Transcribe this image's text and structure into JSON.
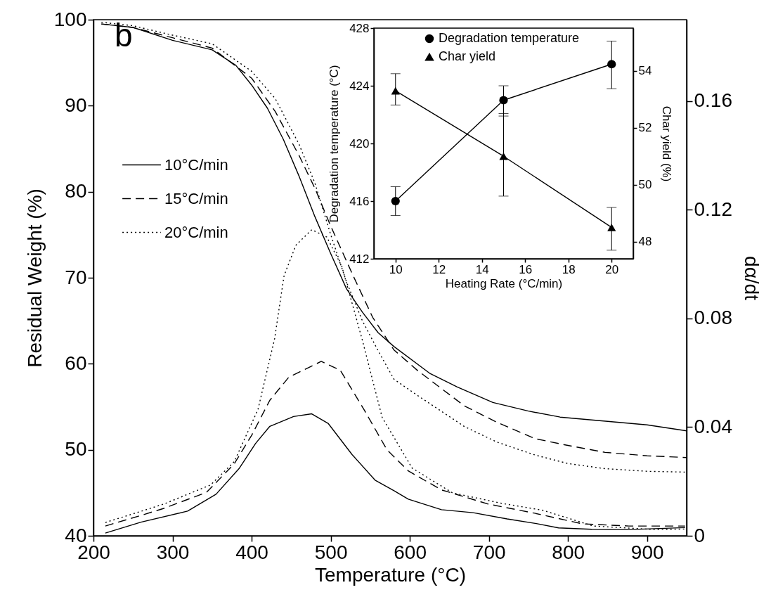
{
  "chart_data": [
    {
      "type": "line",
      "xlabel": "Temperature (°C)",
      "ylabel": "Residual Weight (%)",
      "y2label": "dα/dt",
      "annotations": [
        "b"
      ],
      "legend": "top left",
      "xlim": [
        200,
        950
      ],
      "xticks": [
        200,
        300,
        400,
        500,
        600,
        700,
        800,
        900
      ],
      "ylim": [
        40,
        100
      ],
      "yticks": [
        40,
        50,
        60,
        70,
        80,
        90,
        100
      ],
      "y2lim": [
        0,
        0.19
      ],
      "y2ticks": [
        0,
        0.04,
        0.08,
        0.12,
        0.16
      ],
      "series": [
        {
          "name": "10°C/min",
          "color": "#000000",
          "line_style": "solid",
          "x": [
            210,
            250,
            300,
            350,
            380,
            400,
            420,
            440,
            460,
            480,
            500,
            520,
            540,
            560,
            580,
            625,
            660,
            705,
            750,
            790,
            850,
            900,
            950
          ],
          "values": [
            99.5,
            99.1,
            97.6,
            96.5,
            94.7,
            92.4,
            89.7,
            86.1,
            81.8,
            77.1,
            72.8,
            68.7,
            66.0,
            63.6,
            62.0,
            58.9,
            57.3,
            55.5,
            54.5,
            53.8,
            53.3,
            52.9,
            52.2
          ]
        },
        {
          "name": "15°C/min",
          "color": "#000000",
          "line_style": "dashed",
          "x": [
            210,
            250,
            300,
            350,
            400,
            430,
            460,
            480,
            500,
            527,
            553,
            580,
            610,
            669,
            710,
            758,
            800,
            847,
            900,
            950
          ],
          "values": [
            99.5,
            99.1,
            97.9,
            96.7,
            93.2,
            89.3,
            84.2,
            80.4,
            76.0,
            70.5,
            65.4,
            61.6,
            59.2,
            55.1,
            53.2,
            51.3,
            50.5,
            49.7,
            49.3,
            49.1
          ]
        },
        {
          "name": "20°C/min",
          "color": "#000000",
          "line_style": "dotted",
          "x": [
            210,
            250,
            300,
            350,
            400,
            430,
            460,
            480,
            500,
            520,
            540,
            560,
            580,
            610,
            669,
            710,
            758,
            800,
            847,
            900,
            950
          ],
          "values": [
            99.7,
            99.3,
            98.2,
            97.2,
            94.0,
            90.8,
            85.5,
            81.0,
            75.0,
            69.5,
            65.0,
            61.5,
            58.2,
            56.3,
            52.7,
            50.9,
            49.4,
            48.4,
            47.8,
            47.5,
            47.4
          ]
        },
        {
          "color": "#000000",
          "line_style": "solid",
          "axis": "y2",
          "x": [
            215,
            260,
            319,
            355,
            384,
            405,
            423,
            453,
            476,
            497,
            527,
            556,
            580,
            598,
            640,
            680,
            723,
            760,
            788,
            830,
            877,
            948
          ],
          "values": [
            0.001,
            0.005,
            0.0091,
            0.0153,
            0.0247,
            0.034,
            0.0403,
            0.0439,
            0.0449,
            0.0413,
            0.0299,
            0.0205,
            0.0166,
            0.0135,
            0.0096,
            0.0085,
            0.0062,
            0.0045,
            0.0029,
            0.0024,
            0.0023,
            0.003
          ]
        },
        {
          "color": "#000000",
          "line_style": "dashed",
          "axis": "y2",
          "x": [
            215,
            260,
            289,
            343,
            378,
            400,
            423,
            447,
            488,
            512,
            542,
            571,
            598,
            640,
            699,
            758,
            818,
            877,
            948
          ],
          "values": [
            0.0036,
            0.0075,
            0.0101,
            0.016,
            0.0265,
            0.037,
            0.0499,
            0.0584,
            0.0642,
            0.061,
            0.0465,
            0.0317,
            0.0239,
            0.0169,
            0.0117,
            0.0083,
            0.0044,
            0.0036,
            0.0036
          ]
        },
        {
          "color": "#000000",
          "line_style": "dotted",
          "axis": "y2",
          "x": [
            215,
            260,
            289,
            348,
            378,
            408,
            429,
            441,
            456,
            476,
            495,
            514,
            540,
            565,
            603,
            654,
            717,
            768,
            832,
            909,
            948
          ],
          "values": [
            0.0049,
            0.009,
            0.0117,
            0.0187,
            0.0273,
            0.0465,
            0.0725,
            0.0958,
            0.107,
            0.1127,
            0.11,
            0.0992,
            0.072,
            0.0436,
            0.0249,
            0.0158,
            0.0119,
            0.0094,
            0.0036,
            0.0023,
            0.0025
          ]
        }
      ]
    },
    {
      "type": "line",
      "xlabel": "Heating Rate (°C/min)",
      "ylabel": "Degradation temperature (°C)",
      "y2label": "Char yield (%)",
      "legend": "top",
      "x": [
        10,
        15,
        20
      ],
      "xlim": [
        9,
        21
      ],
      "xticks": [
        10,
        12,
        14,
        16,
        18,
        20
      ],
      "ylim": [
        412,
        428
      ],
      "yticks": [
        412,
        416,
        420,
        424,
        428
      ],
      "y2lim": [
        47.4,
        55.5
      ],
      "y2ticks": [
        48,
        50,
        52,
        54
      ],
      "series": [
        {
          "name": "Degradation temperature",
          "color": "#000000",
          "line_style": "solid",
          "marker": "circle",
          "values": [
            416.0,
            423.0,
            425.5
          ],
          "errors": [
            1,
            [
              421.9,
              424.0
            ],
            [
              423.8,
              427.1
            ]
          ]
        },
        {
          "name": "Char yield",
          "color": "#000000",
          "line_style": "solid",
          "marker": "triangle",
          "axis": "y2",
          "values": [
            53.3,
            51.0,
            48.5
          ],
          "errors": [
            [
              52.8,
              53.9
            ],
            [
              49.6,
              52.5
            ],
            [
              47.7,
              49.2
            ]
          ]
        }
      ]
    }
  ]
}
